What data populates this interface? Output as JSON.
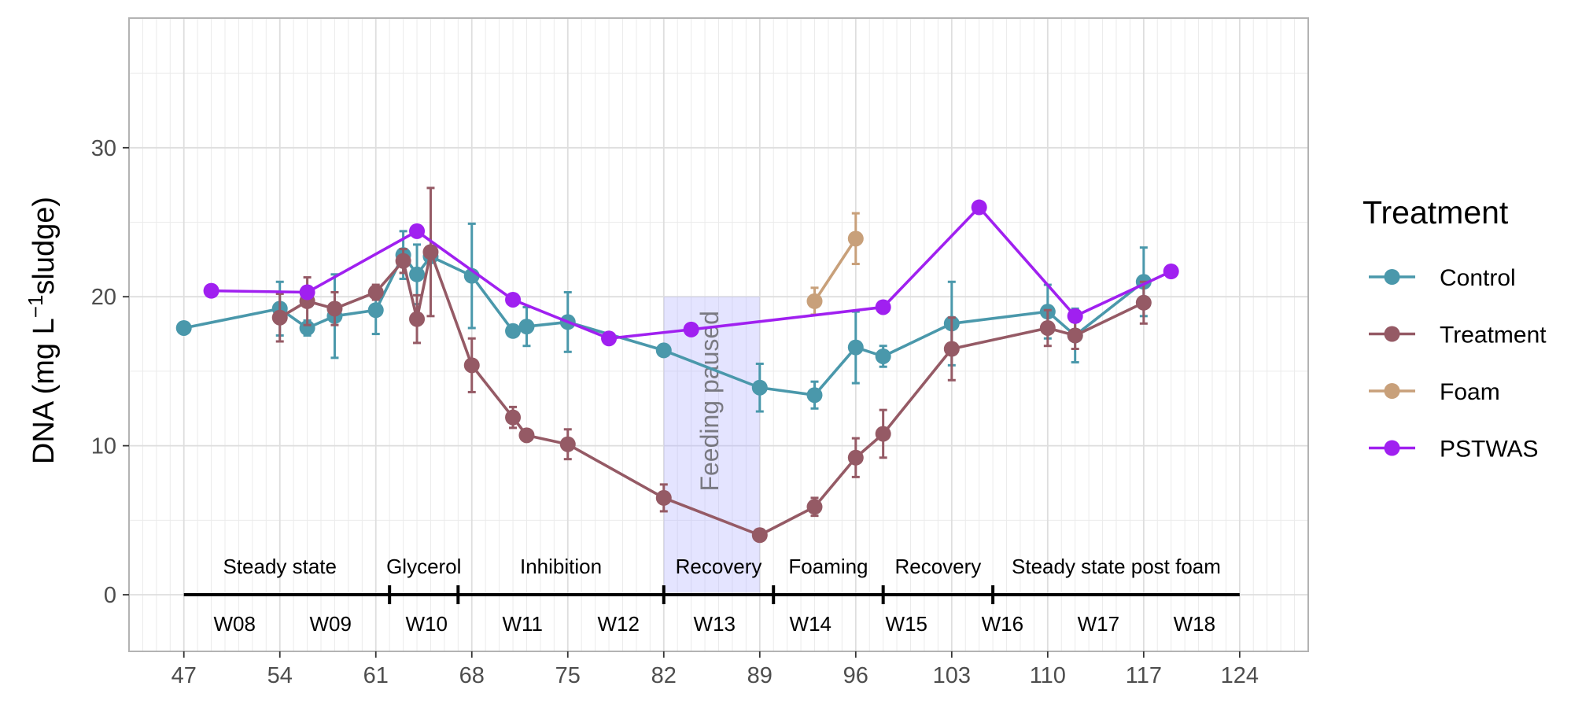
{
  "chart_data": {
    "type": "line",
    "title": "",
    "ylabel": {
      "main": "DNA (mg L",
      "sup": "−1",
      "tail": "sludge)"
    },
    "xlabel": "",
    "xlim": [
      43,
      129
    ],
    "ylim": [
      -3.8,
      38.7
    ],
    "x_ticks": [
      47,
      54,
      61,
      68,
      75,
      82,
      89,
      96,
      103,
      110,
      117,
      124
    ],
    "y_ticks": [
      0,
      10,
      20,
      30
    ],
    "grid": true,
    "legend": {
      "title": "Treatment",
      "position": "right",
      "entries": [
        "Control",
        "Treatment",
        "Foam",
        "PSTWAS"
      ]
    },
    "series": [
      {
        "name": "Control",
        "color": "#4a98ab",
        "points": [
          {
            "x": 47,
            "y": 17.9
          },
          {
            "x": 54,
            "y": 19.2,
            "err": 1.8
          },
          {
            "x": 56,
            "y": 17.9,
            "err": 0.5
          },
          {
            "x": 58,
            "y": 18.7,
            "err": 2.8
          },
          {
            "x": 61,
            "y": 19.1,
            "err": 1.6
          },
          {
            "x": 63,
            "y": 22.8,
            "err": 1.6
          },
          {
            "x": 64,
            "y": 21.5,
            "err": 2.0
          },
          {
            "x": 65,
            "y": 22.7
          },
          {
            "x": 68,
            "y": 21.4,
            "err": 3.5
          },
          {
            "x": 71,
            "y": 17.7
          },
          {
            "x": 72,
            "y": 18.0,
            "err": 1.3
          },
          {
            "x": 75,
            "y": 18.3,
            "err": 2.0
          },
          {
            "x": 82,
            "y": 16.4
          },
          {
            "x": 89,
            "y": 13.9,
            "err": 1.6
          },
          {
            "x": 93,
            "y": 13.4,
            "err": 0.9
          },
          {
            "x": 96,
            "y": 16.6,
            "err": 2.4
          },
          {
            "x": 98,
            "y": 16.0,
            "err": 0.7
          },
          {
            "x": 103,
            "y": 18.2,
            "err": 2.8
          },
          {
            "x": 110,
            "y": 19.0,
            "err": 1.8
          },
          {
            "x": 112,
            "y": 17.4,
            "err": 1.8
          },
          {
            "x": 117,
            "y": 21.0,
            "err": 2.3
          }
        ]
      },
      {
        "name": "Treatment",
        "color": "#955a65",
        "points": [
          {
            "x": 54,
            "y": 18.6,
            "err": 1.6
          },
          {
            "x": 56,
            "y": 19.7,
            "err": 1.6
          },
          {
            "x": 58,
            "y": 19.2,
            "err": 1.1
          },
          {
            "x": 61,
            "y": 20.3,
            "err": 0.5
          },
          {
            "x": 63,
            "y": 22.4,
            "err": 0.8
          },
          {
            "x": 64,
            "y": 18.5,
            "err": 1.6
          },
          {
            "x": 65,
            "y": 23.0,
            "err": 4.3
          },
          {
            "x": 68,
            "y": 15.4,
            "err": 1.8
          },
          {
            "x": 71,
            "y": 11.9,
            "err": 0.7
          },
          {
            "x": 72,
            "y": 10.7
          },
          {
            "x": 75,
            "y": 10.1,
            "err": 1.0
          },
          {
            "x": 82,
            "y": 6.5,
            "err": 0.9
          },
          {
            "x": 89,
            "y": 4.0
          },
          {
            "x": 93,
            "y": 5.9,
            "err": 0.6
          },
          {
            "x": 96,
            "y": 9.2,
            "err": 1.3
          },
          {
            "x": 98,
            "y": 10.8,
            "err": 1.6
          },
          {
            "x": 103,
            "y": 16.5,
            "err": 2.1
          },
          {
            "x": 110,
            "y": 17.9,
            "err": 1.2
          },
          {
            "x": 112,
            "y": 17.4,
            "err": 0.9
          },
          {
            "x": 117,
            "y": 19.6,
            "err": 1.4
          }
        ]
      },
      {
        "name": "Foam",
        "color": "#c8a07a",
        "points": [
          {
            "x": 93,
            "y": 19.7,
            "err": 0.9
          },
          {
            "x": 96,
            "y": 23.9,
            "err": 1.7
          }
        ]
      },
      {
        "name": "PSTWAS",
        "color": "#a020f0",
        "points": [
          {
            "x": 49,
            "y": 20.4
          },
          {
            "x": 56,
            "y": 20.3
          },
          {
            "x": 64,
            "y": 24.4
          },
          {
            "x": 71,
            "y": 19.8
          },
          {
            "x": 78,
            "y": 17.2
          },
          {
            "x": 84,
            "y": 17.8
          },
          {
            "x": 98,
            "y": 19.3
          },
          {
            "x": 105,
            "y": 26.0
          },
          {
            "x": 112,
            "y": 18.7
          },
          {
            "x": 119,
            "y": 21.7
          }
        ]
      }
    ],
    "shaded_region": {
      "x_start": 82,
      "x_end": 89,
      "y_start": 0,
      "y_end": 20,
      "label": "Feeding paused",
      "color": "#b3b3ff"
    },
    "timeline": {
      "y": 0,
      "x_start": 47,
      "x_end": 124,
      "breaks": [
        62,
        67,
        82,
        90,
        98,
        106
      ],
      "phases": [
        {
          "label": "Steady state",
          "x": 54
        },
        {
          "label": "Glycerol",
          "x": 64.5
        },
        {
          "label": "Inhibition",
          "x": 74.5
        },
        {
          "label": "Recovery",
          "x": 86
        },
        {
          "label": "Foaming",
          "x": 94
        },
        {
          "label": "Recovery",
          "x": 102
        },
        {
          "label": "Steady state post foam",
          "x": 115
        }
      ],
      "weeks": [
        {
          "label": "W08",
          "x": 50.7
        },
        {
          "label": "W09",
          "x": 57.7
        },
        {
          "label": "W10",
          "x": 64.7
        },
        {
          "label": "W11",
          "x": 71.7
        },
        {
          "label": "W12",
          "x": 78.7
        },
        {
          "label": "W13",
          "x": 85.7
        },
        {
          "label": "W14",
          "x": 92.7
        },
        {
          "label": "W15",
          "x": 99.7
        },
        {
          "label": "W16",
          "x": 106.7
        },
        {
          "label": "W17",
          "x": 113.7
        },
        {
          "label": "W18",
          "x": 120.7
        }
      ]
    }
  }
}
